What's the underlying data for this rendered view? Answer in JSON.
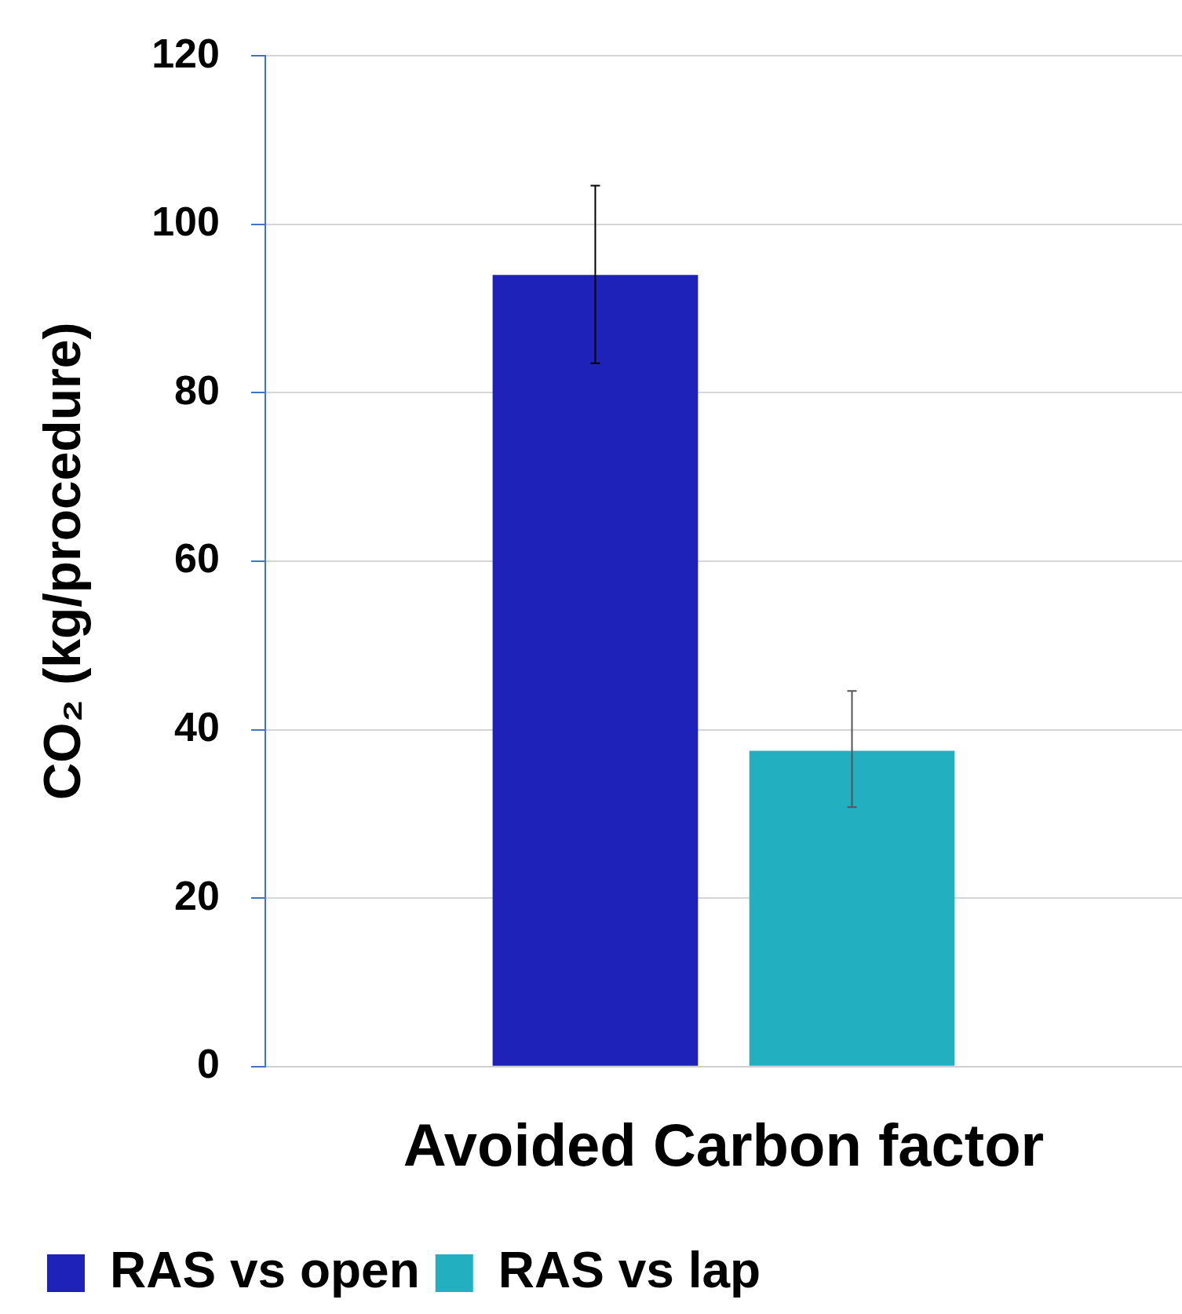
{
  "chart_data": {
    "type": "bar",
    "categories": [
      "Avoided Carbon factor"
    ],
    "series": [
      {
        "name": "RAS vs open",
        "color": "#1e22b8",
        "values": [
          94
        ],
        "errors": [
          [
            83.5,
            104.6
          ]
        ]
      },
      {
        "name": "RAS vs lap",
        "color": "#22afc0",
        "values": [
          37.5
        ],
        "errors": [
          [
            30.8,
            44.6
          ]
        ]
      }
    ],
    "ylabel": "CO₂ (kg/procedure)",
    "ylim": [
      0,
      120
    ],
    "yticks": [
      0,
      20,
      40,
      60,
      80,
      100,
      120
    ],
    "grid": "y",
    "legend": "bottom"
  }
}
